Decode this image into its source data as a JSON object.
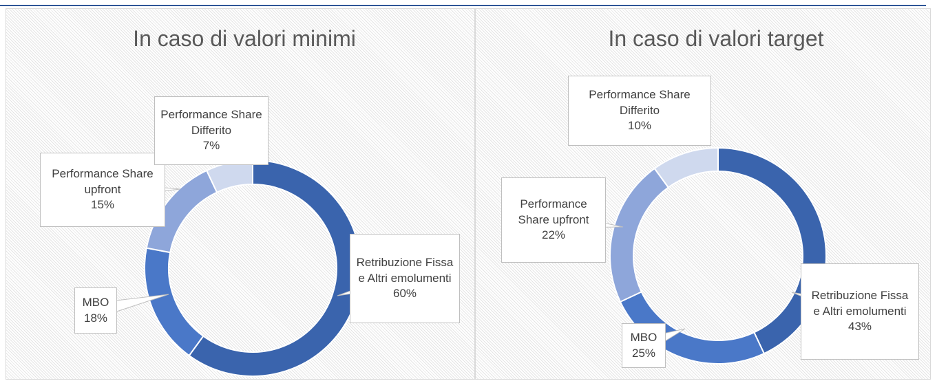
{
  "chart_data": [
    {
      "type": "doughnut",
      "title": "In caso di valori minimi",
      "categories": [
        "Retribuzione Fissa e Altri emolumenti",
        "MBO",
        "Performance Share upfront",
        "Performance Share Differito"
      ],
      "values": [
        60,
        18,
        15,
        7
      ],
      "value_labels": [
        "60%",
        "18%",
        "15%",
        "7%"
      ],
      "colors": [
        "#3a64ad",
        "#4a78c8",
        "#8ea6da",
        "#cfd9ee"
      ]
    },
    {
      "type": "doughnut",
      "title": "In caso di valori target",
      "categories": [
        "Retribuzione Fissa e Altri emolumenti",
        "MBO",
        "Performance Share upfront",
        "Performance Share Differito"
      ],
      "values": [
        43,
        25,
        22,
        10
      ],
      "value_labels": [
        "43%",
        "25%",
        "22%",
        "10%"
      ],
      "colors": [
        "#3a64ad",
        "#4a78c8",
        "#8ea6da",
        "#cfd9ee"
      ]
    }
  ]
}
